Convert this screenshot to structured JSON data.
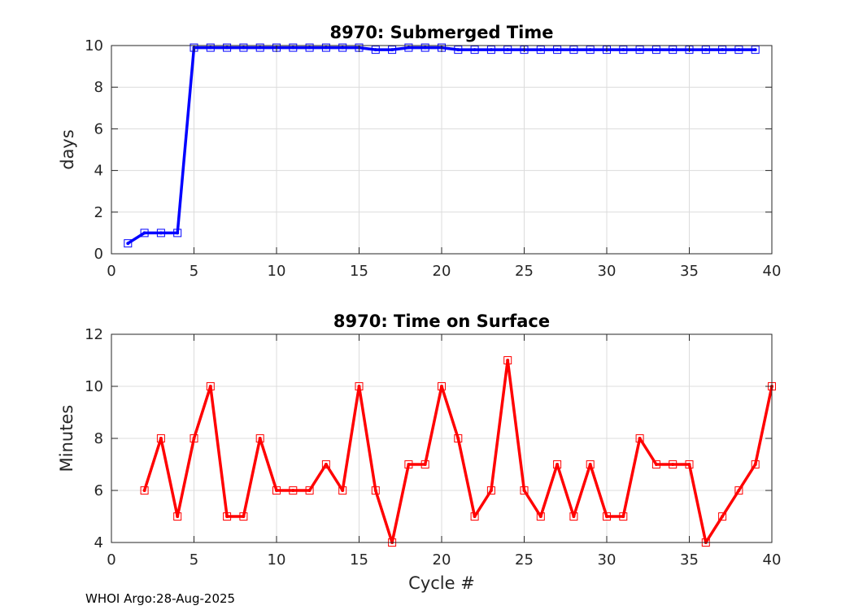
{
  "chart_data": [
    {
      "type": "line",
      "title": "8970: Submerged Time",
      "xlabel": "",
      "ylabel": "days",
      "xlim": [
        0,
        40
      ],
      "ylim": [
        0,
        10
      ],
      "xticks": [
        0,
        5,
        10,
        15,
        20,
        25,
        30,
        35,
        40
      ],
      "yticks": [
        0,
        2,
        4,
        6,
        8,
        10
      ],
      "grid": true,
      "series": [
        {
          "name": "Submerged Time",
          "color": "#0000ff",
          "marker": "square",
          "x": [
            1,
            2,
            3,
            4,
            5,
            6,
            7,
            8,
            9,
            10,
            11,
            12,
            13,
            14,
            15,
            16,
            17,
            18,
            19,
            20,
            21,
            22,
            23,
            24,
            25,
            26,
            27,
            28,
            29,
            30,
            31,
            32,
            33,
            34,
            35,
            36,
            37,
            38,
            39
          ],
          "y": [
            0.5,
            1.0,
            1.0,
            1.0,
            9.9,
            9.9,
            9.9,
            9.9,
            9.9,
            9.9,
            9.9,
            9.9,
            9.9,
            9.9,
            9.9,
            9.8,
            9.8,
            9.9,
            9.9,
            9.9,
            9.8,
            9.8,
            9.8,
            9.8,
            9.8,
            9.8,
            9.8,
            9.8,
            9.8,
            9.8,
            9.8,
            9.8,
            9.8,
            9.8,
            9.8,
            9.8,
            9.8,
            9.8,
            9.8
          ]
        }
      ]
    },
    {
      "type": "line",
      "title": "8970: Time on Surface",
      "xlabel": "Cycle #",
      "ylabel": "Minutes",
      "xlim": [
        0,
        40
      ],
      "ylim": [
        4,
        12
      ],
      "xticks": [
        0,
        5,
        10,
        15,
        20,
        25,
        30,
        35,
        40
      ],
      "yticks": [
        4,
        6,
        8,
        10,
        12
      ],
      "grid": true,
      "series": [
        {
          "name": "Time on Surface",
          "color": "#ff0000",
          "marker": "square",
          "x": [
            2,
            3,
            4,
            5,
            6,
            7,
            8,
            9,
            10,
            11,
            12,
            13,
            14,
            15,
            16,
            17,
            18,
            19,
            20,
            21,
            22,
            23,
            24,
            25,
            26,
            27,
            28,
            29,
            30,
            31,
            32,
            33,
            34,
            35,
            36,
            37,
            38,
            39,
            40
          ],
          "y": [
            6,
            8,
            5,
            8,
            10,
            5,
            5,
            8,
            6,
            6,
            6,
            7,
            6,
            10,
            6,
            4,
            7,
            7,
            10,
            8,
            5,
            6,
            11,
            6,
            5,
            7,
            5,
            7,
            5,
            5,
            8,
            7,
            7,
            7,
            4,
            5,
            6,
            7,
            10
          ]
        }
      ]
    }
  ],
  "footer": "WHOI Argo:28-Aug-2025"
}
